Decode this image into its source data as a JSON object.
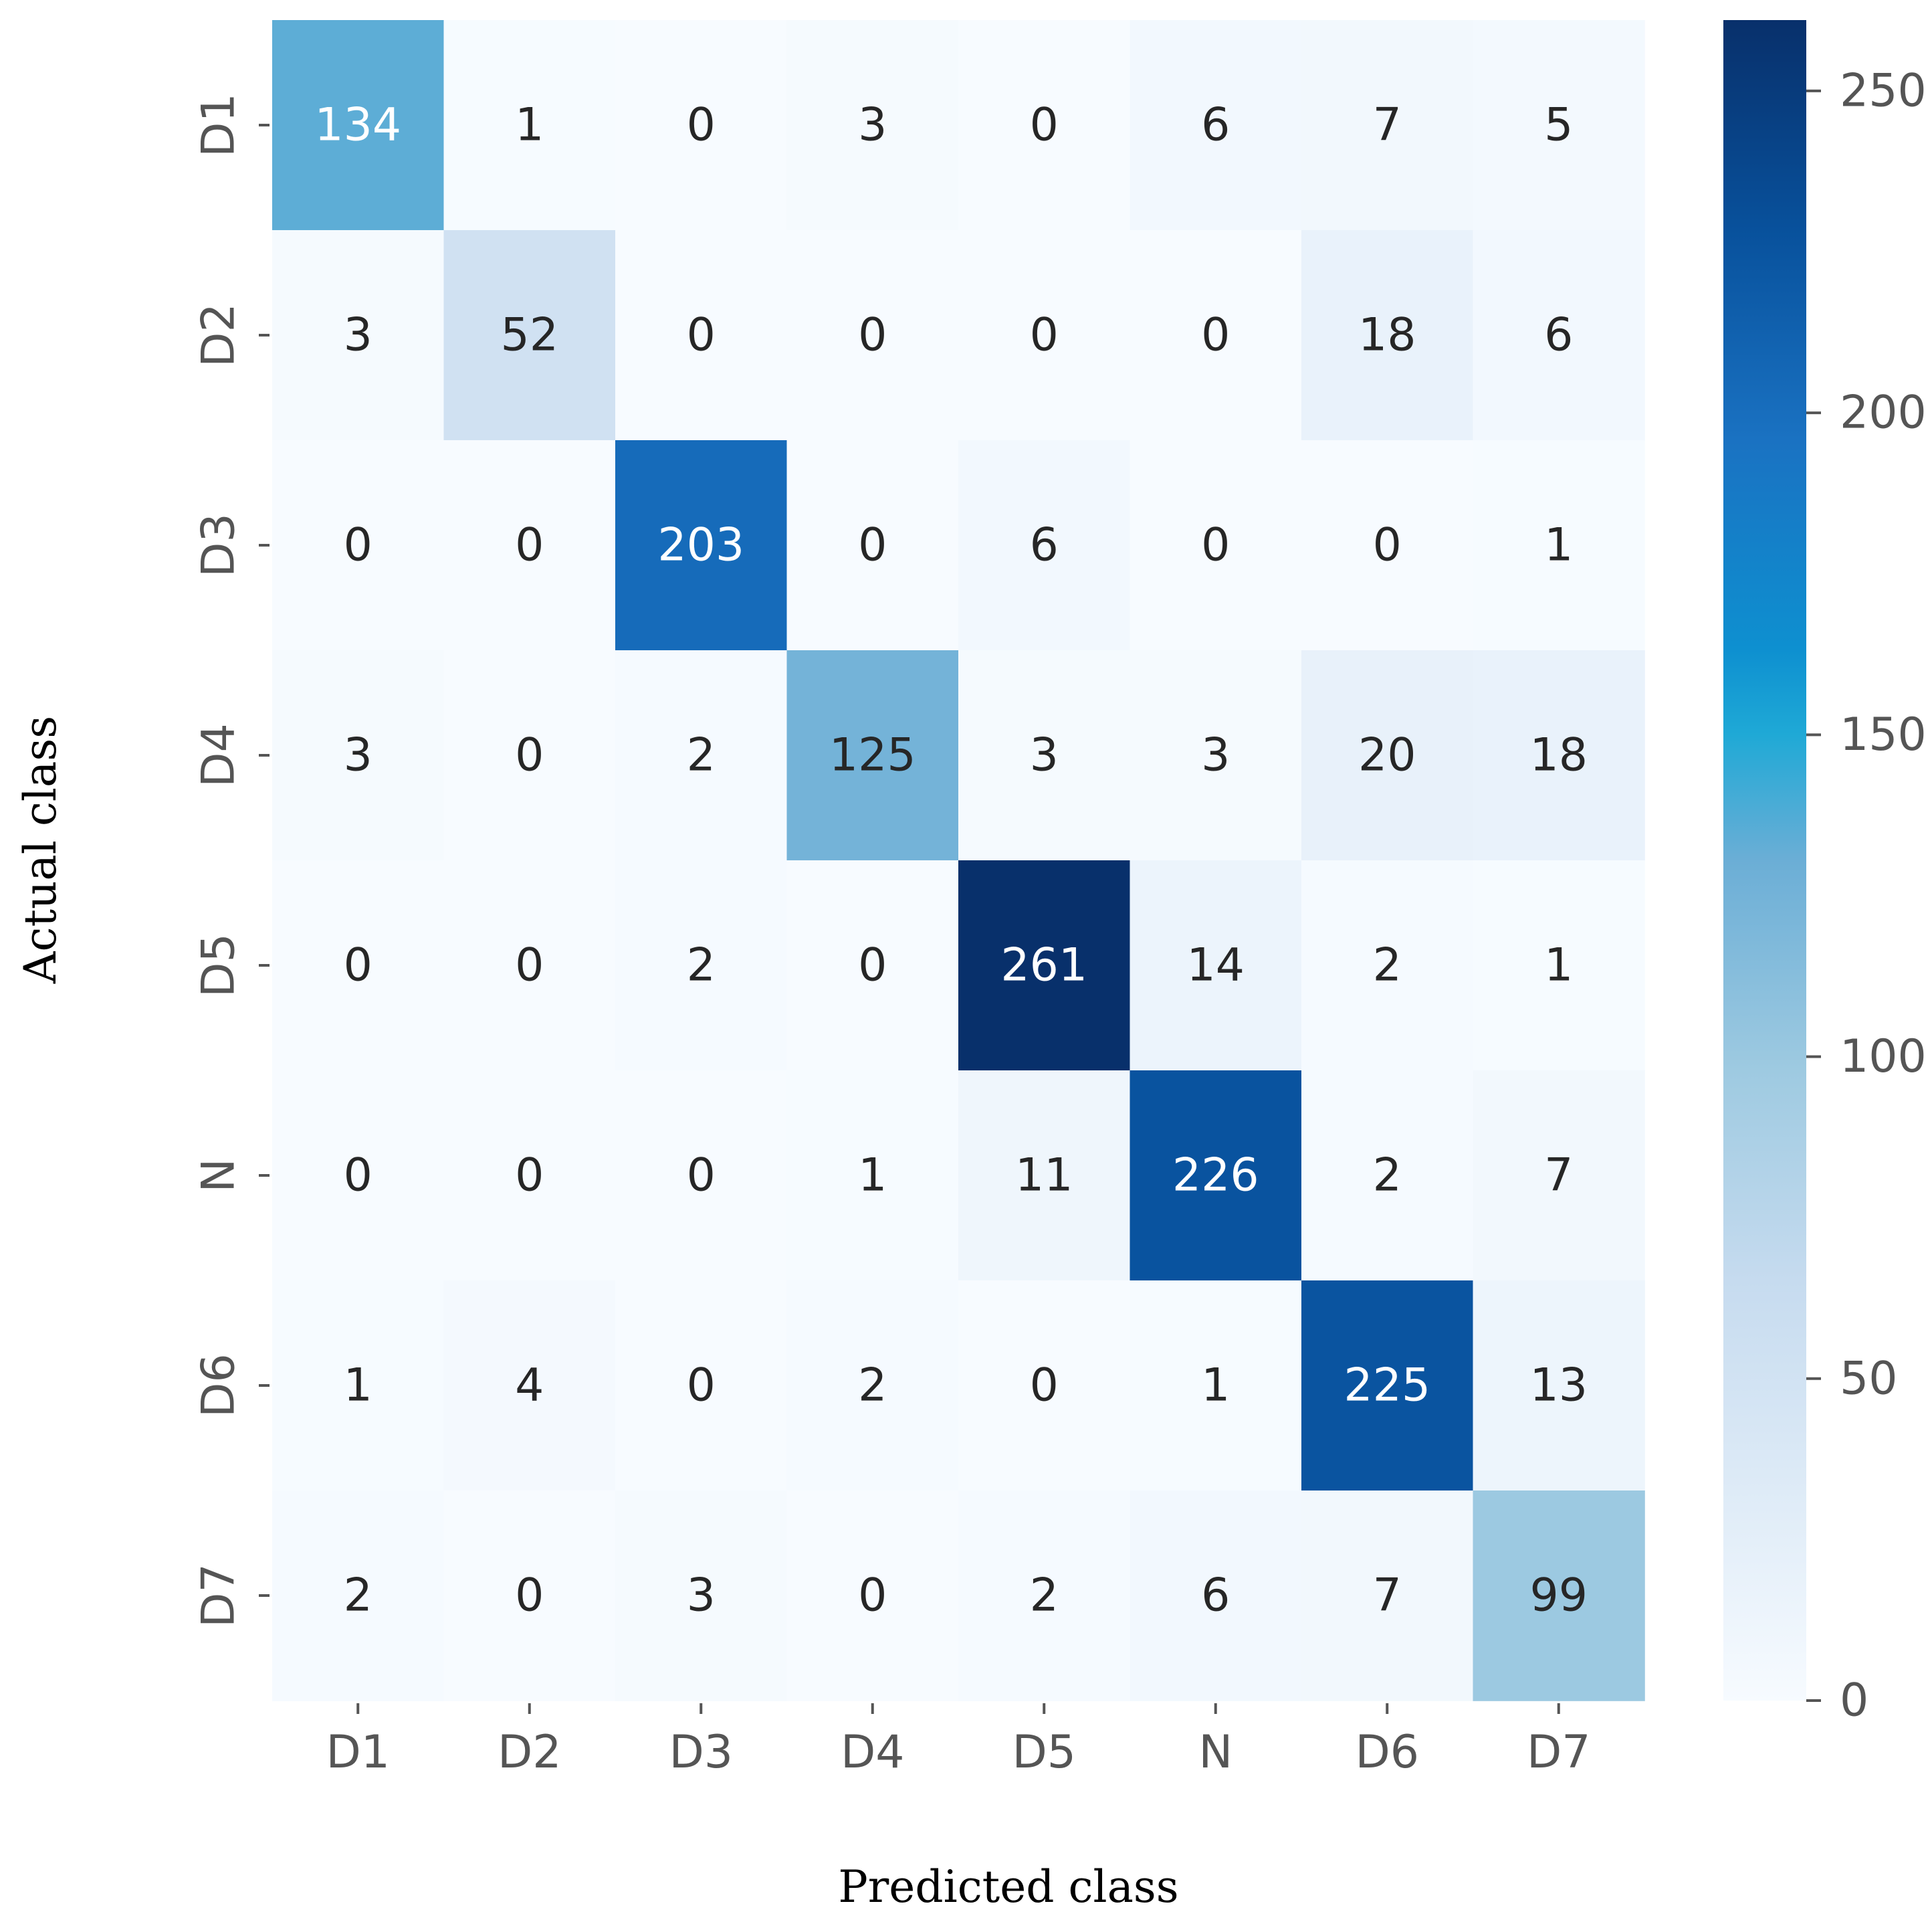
{
  "chart_data": {
    "type": "heatmap",
    "title": "",
    "xlabel": "Predicted class",
    "ylabel": "Actual class",
    "x_categories": [
      "D1",
      "D2",
      "D3",
      "D4",
      "D5",
      "N",
      "D6",
      "D7"
    ],
    "y_categories": [
      "D1",
      "D2",
      "D3",
      "D4",
      "D5",
      "N",
      "D6",
      "D7"
    ],
    "matrix": [
      [
        134,
        1,
        0,
        3,
        0,
        6,
        7,
        5
      ],
      [
        3,
        52,
        0,
        0,
        0,
        0,
        18,
        6
      ],
      [
        0,
        0,
        203,
        0,
        6,
        0,
        0,
        1
      ],
      [
        3,
        0,
        2,
        125,
        3,
        3,
        20,
        18
      ],
      [
        0,
        0,
        2,
        0,
        261,
        14,
        2,
        1
      ],
      [
        0,
        0,
        0,
        1,
        11,
        226,
        2,
        7
      ],
      [
        1,
        4,
        0,
        2,
        0,
        1,
        225,
        13
      ],
      [
        2,
        0,
        3,
        0,
        2,
        6,
        7,
        99
      ]
    ],
    "colorscale": "Blues",
    "colorbar": {
      "range": [
        0,
        261
      ],
      "ticks": [
        0,
        50,
        100,
        150,
        200,
        250
      ],
      "tick_labels": [
        "0",
        "50",
        "100",
        "150",
        "200",
        "250"
      ]
    },
    "text_colors": {
      "light": "#ffffff",
      "dark": "#262626"
    }
  }
}
